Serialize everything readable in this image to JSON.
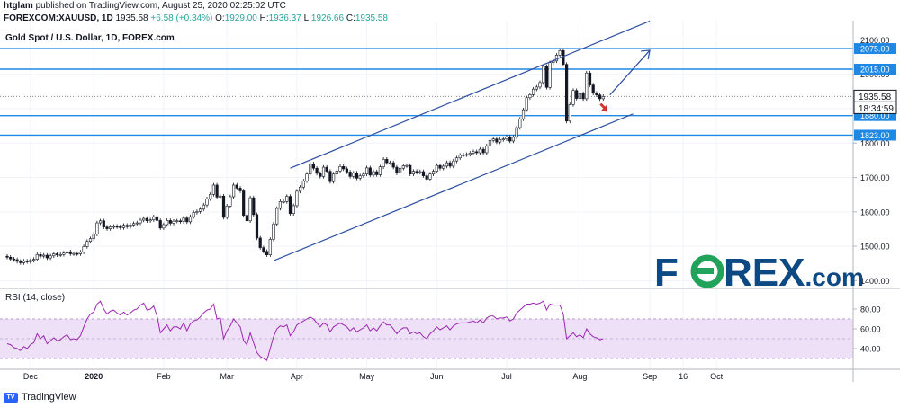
{
  "header": {
    "user": "htglam",
    "published_text": "published on TradingView.com, August 25, 2020 02:25:02 UTC",
    "symbol": "FOREXCOM:XAUUSD, 1D",
    "last": "1935.58",
    "change": "+6.58 (+0.34%)",
    "open_label": "O:",
    "open": "1929.00",
    "high_label": "H:",
    "high": "1936.37",
    "low_label": "L:",
    "low": "1926.66",
    "close_label": "C:",
    "close": "1935.58"
  },
  "footer": {
    "brand": "TradingView",
    "icon": "tradingview-logo-icon"
  },
  "logo": {
    "text_left": "F",
    "text_right": "REX.com",
    "mark": "forex-o-icon"
  },
  "chart_data": {
    "type": "candlestick",
    "title": "Gold Spot / U.S. Dollar, 1D, FOREX.com",
    "ylim": [
      1380,
      2130
    ],
    "y_ticks": [
      1400,
      1500,
      1600,
      1700,
      1800,
      1900,
      2000,
      2100
    ],
    "y_tick_labels": [
      "1400.00",
      "1500.00",
      "1600.00",
      "1700.00",
      "1800.00",
      "1900.00",
      "2000.00",
      "2100.00"
    ],
    "x_tick_labels": [
      {
        "label": "Dec",
        "index": 7
      },
      {
        "label": "2020",
        "index": 26
      },
      {
        "label": "Feb",
        "index": 47
      },
      {
        "label": "Mar",
        "index": 66
      },
      {
        "label": "Apr",
        "index": 87
      },
      {
        "label": "May",
        "index": 108
      },
      {
        "label": "Jun",
        "index": 129
      },
      {
        "label": "Jul",
        "index": 150
      },
      {
        "label": "Aug",
        "index": 172
      },
      {
        "label": "Sep",
        "index": 193
      },
      {
        "label": "16",
        "index": 203
      },
      {
        "label": "Oct",
        "index": 213
      }
    ],
    "last_price": 1935.58,
    "countdown": "18:34:59",
    "levels": [
      {
        "value": 2075.0,
        "label": "2075.00"
      },
      {
        "value": 2015.0,
        "label": "2015.00"
      },
      {
        "value": 1880.0,
        "label": "1880.00"
      },
      {
        "value": 1823.0,
        "label": "1823.00"
      }
    ],
    "channel": {
      "upper": [
        {
          "index": 85,
          "value": 1727
        },
        {
          "index": 193,
          "value": 2155
        }
      ],
      "lower": [
        {
          "index": 80,
          "value": 1458
        },
        {
          "index": 188,
          "value": 1885
        }
      ]
    },
    "projection_arrow": [
      {
        "index": 181,
        "value": 1940
      },
      {
        "index": 193,
        "value": 2070
      }
    ],
    "close": [
      1468,
      1463,
      1461,
      1456,
      1452,
      1457,
      1455,
      1459,
      1462,
      1476,
      1471,
      1474,
      1466,
      1472,
      1478,
      1475,
      1476,
      1480,
      1484,
      1478,
      1479,
      1478,
      1483,
      1499,
      1514,
      1522,
      1535,
      1568,
      1574,
      1556,
      1551,
      1556,
      1558,
      1557,
      1554,
      1561,
      1557,
      1562,
      1566,
      1568,
      1576,
      1581,
      1574,
      1577,
      1586,
      1575,
      1553,
      1563,
      1575,
      1567,
      1573,
      1574,
      1572,
      1582,
      1571,
      1586,
      1598,
      1601,
      1608,
      1620,
      1638,
      1651,
      1678,
      1643,
      1646,
      1584,
      1617,
      1644,
      1678,
      1669,
      1661,
      1590,
      1574,
      1641,
      1592,
      1524,
      1496,
      1485,
      1475,
      1520,
      1565,
      1610,
      1630,
      1630,
      1645,
      1595,
      1618,
      1660,
      1672,
      1690,
      1710,
      1740,
      1727,
      1712,
      1703,
      1730,
      1718,
      1688,
      1710,
      1719,
      1732,
      1725,
      1716,
      1703,
      1713,
      1698,
      1705,
      1710,
      1728,
      1707,
      1717,
      1708,
      1731,
      1753,
      1743,
      1743,
      1730,
      1713,
      1727,
      1734,
      1735,
      1710,
      1718,
      1715,
      1717,
      1705,
      1695,
      1710,
      1718,
      1735,
      1727,
      1733,
      1743,
      1733,
      1748,
      1757,
      1765,
      1766,
      1767,
      1771,
      1775,
      1772,
      1782,
      1772,
      1792,
      1808,
      1812,
      1803,
      1810,
      1812,
      1818,
      1806,
      1817,
      1845,
      1870,
      1897,
      1932,
      1941,
      1957,
      1963,
      1976,
      2023,
      1962,
      2034,
      2039,
      2056,
      2069,
      2029,
      1864,
      1912,
      1953,
      1930,
      1944,
      1929,
      2004,
      1969,
      1945,
      1940,
      1929,
      1935.58
    ],
    "rsi": {
      "label": "RSI (14, close)",
      "ylim": [
        20,
        100
      ],
      "band": [
        30,
        70
      ],
      "y_ticks": [
        40,
        60,
        80
      ],
      "y_tick_labels": [
        "40.00",
        "60.00",
        "80.00"
      ],
      "values": [
        45,
        44,
        41,
        40,
        38,
        42,
        40,
        44,
        46,
        55,
        50,
        53,
        45,
        48,
        51,
        48,
        49,
        52,
        54,
        49,
        50,
        49,
        53,
        62,
        70,
        75,
        77,
        85,
        88,
        80,
        75,
        78,
        79,
        76,
        74,
        77,
        74,
        76,
        79,
        80,
        84,
        86,
        79,
        80,
        83,
        73,
        56,
        60,
        64,
        58,
        62,
        62,
        60,
        66,
        58,
        65,
        68,
        69,
        72,
        76,
        79,
        80,
        85,
        70,
        71,
        50,
        58,
        63,
        70,
        66,
        62,
        48,
        44,
        56,
        46,
        36,
        32,
        30,
        28,
        40,
        52,
        60,
        63,
        62,
        64,
        53,
        57,
        64,
        66,
        68,
        70,
        72,
        70,
        66,
        62,
        66,
        64,
        57,
        62,
        64,
        66,
        64,
        62,
        58,
        61,
        57,
        59,
        61,
        64,
        58,
        61,
        58,
        63,
        67,
        64,
        64,
        60,
        55,
        59,
        61,
        61,
        55,
        57,
        55,
        56,
        52,
        50,
        55,
        58,
        62,
        59,
        61,
        63,
        59,
        63,
        65,
        66,
        66,
        66,
        67,
        68,
        66,
        69,
        66,
        71,
        73,
        73,
        70,
        71,
        71,
        72,
        68,
        70,
        76,
        79,
        82,
        85,
        85,
        86,
        85,
        86,
        88,
        79,
        85,
        84,
        84,
        84,
        75,
        50,
        53,
        56,
        52,
        54,
        51,
        60,
        55,
        52,
        51,
        49,
        50
      ]
    }
  }
}
